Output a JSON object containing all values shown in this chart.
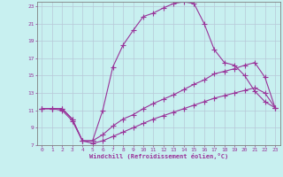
{
  "xlabel": "Windchill (Refroidissement éolien,°C)",
  "bg_color": "#c8f0f0",
  "grid_color": "#b8c8d8",
  "line_color": "#993399",
  "xlim": [
    -0.5,
    23.5
  ],
  "ylim": [
    7,
    23.5
  ],
  "xticks": [
    0,
    1,
    2,
    3,
    4,
    5,
    6,
    7,
    8,
    9,
    10,
    11,
    12,
    13,
    14,
    15,
    16,
    17,
    18,
    19,
    20,
    21,
    22,
    23
  ],
  "yticks": [
    7,
    9,
    11,
    13,
    15,
    17,
    19,
    21,
    23
  ],
  "line1_x": [
    0,
    1,
    2,
    3,
    4,
    5,
    6,
    7,
    8,
    9,
    10,
    11,
    12,
    13,
    14,
    15,
    16,
    17,
    18,
    19,
    20,
    21,
    22,
    23
  ],
  "line1_y": [
    11.2,
    11.2,
    11.2,
    10.0,
    7.5,
    7.5,
    11.0,
    16.0,
    18.5,
    20.2,
    21.8,
    22.2,
    22.8,
    23.3,
    23.5,
    23.3,
    21.0,
    18.0,
    16.5,
    16.2,
    15.0,
    13.2,
    12.0,
    11.3
  ],
  "line2_x": [
    0,
    1,
    2,
    3,
    4,
    5,
    6,
    7,
    8,
    9,
    10,
    11,
    12,
    13,
    14,
    15,
    16,
    17,
    18,
    19,
    20,
    21,
    22,
    23
  ],
  "line2_y": [
    11.2,
    11.2,
    11.2,
    10.0,
    7.5,
    7.5,
    8.2,
    9.2,
    10.0,
    10.5,
    11.2,
    11.8,
    12.3,
    12.8,
    13.4,
    14.0,
    14.5,
    15.2,
    15.5,
    15.8,
    16.2,
    16.5,
    14.8,
    11.3
  ],
  "line3_x": [
    0,
    1,
    2,
    3,
    4,
    5,
    6,
    7,
    8,
    9,
    10,
    11,
    12,
    13,
    14,
    15,
    16,
    17,
    18,
    19,
    20,
    21,
    22,
    23
  ],
  "line3_y": [
    11.2,
    11.2,
    11.0,
    9.8,
    7.5,
    7.2,
    7.5,
    8.0,
    8.5,
    9.0,
    9.5,
    10.0,
    10.4,
    10.8,
    11.2,
    11.6,
    12.0,
    12.4,
    12.7,
    13.0,
    13.3,
    13.6,
    13.0,
    11.3
  ]
}
